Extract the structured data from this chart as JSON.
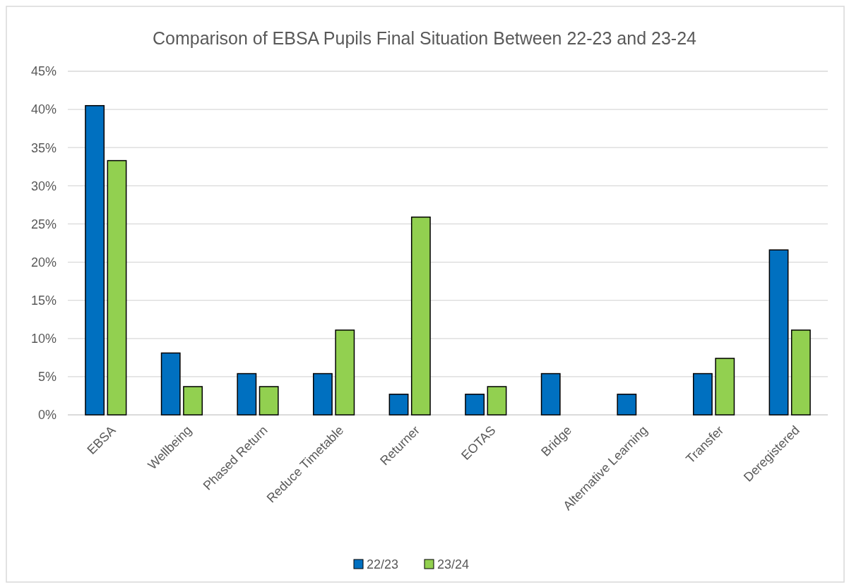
{
  "chart_data": {
    "type": "bar",
    "title": "Comparison of EBSA Pupils Final Situation Between 22-23 and 23-24",
    "categories": [
      "EBSA",
      "Wellbeing",
      "Phased Return",
      "Reduce Timetable",
      "Returner",
      "EOTAS",
      "Bridge",
      "Alternative Learning",
      "Transfer",
      "Deregistered"
    ],
    "series": [
      {
        "name": "22/23",
        "color": "#0070c0",
        "values": [
          40.5,
          8.1,
          5.4,
          5.4,
          2.7,
          2.7,
          5.4,
          2.7,
          5.4,
          21.6
        ]
      },
      {
        "name": "23/24",
        "color": "#92d050",
        "values": [
          33.3,
          3.7,
          3.7,
          11.1,
          25.9,
          3.7,
          null,
          null,
          7.4,
          11.1
        ]
      }
    ],
    "ylim": [
      0,
      45
    ],
    "yticks": [
      {
        "value": 0,
        "label": "0%"
      },
      {
        "value": 5,
        "label": "5%"
      },
      {
        "value": 10,
        "label": "10%"
      },
      {
        "value": 15,
        "label": "15%"
      },
      {
        "value": 20,
        "label": "20%"
      },
      {
        "value": 25,
        "label": "25%"
      },
      {
        "value": 30,
        "label": "30%"
      },
      {
        "value": 35,
        "label": "35%"
      },
      {
        "value": 40,
        "label": "40%"
      },
      {
        "value": 45,
        "label": "45%"
      }
    ],
    "grid": "y",
    "legend": "bottom"
  }
}
